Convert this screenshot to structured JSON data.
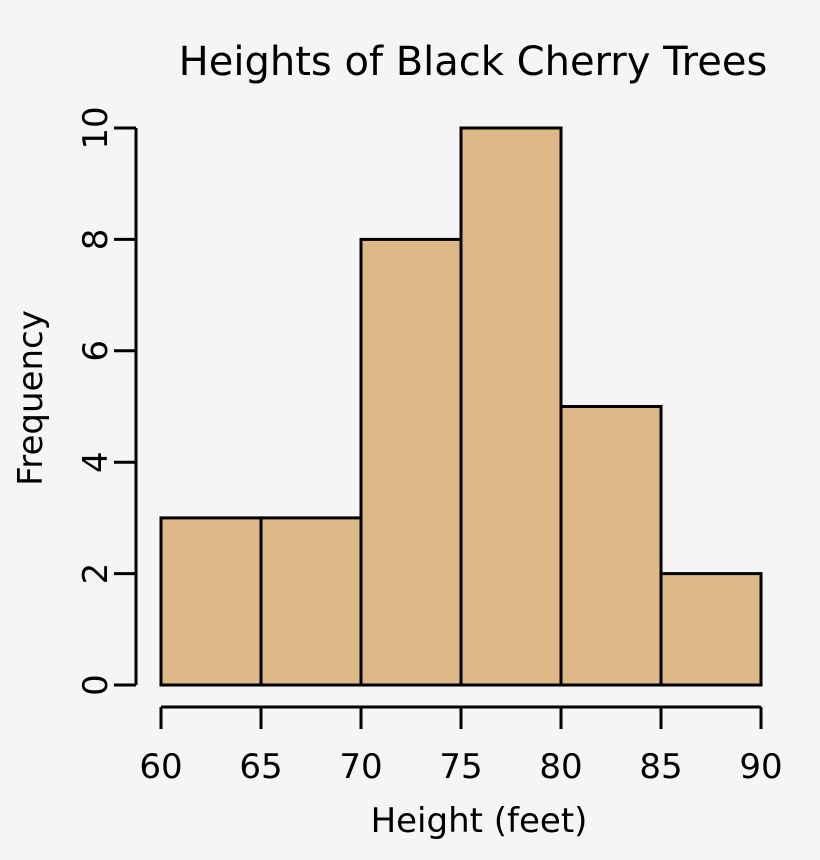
{
  "chart_data": {
    "type": "bar",
    "histogram": true,
    "title": "Heights of Black Cherry Trees",
    "xlabel": "Height (feet)",
    "ylabel": "Frequency",
    "bins": [
      [
        60,
        65
      ],
      [
        65,
        70
      ],
      [
        70,
        75
      ],
      [
        75,
        80
      ],
      [
        80,
        85
      ],
      [
        85,
        90
      ]
    ],
    "values": [
      3,
      3,
      8,
      10,
      5,
      2
    ],
    "xticks": [
      "60",
      "65",
      "70",
      "75",
      "80",
      "85",
      "90"
    ],
    "yticks": [
      "0",
      "2",
      "4",
      "6",
      "8",
      "10"
    ],
    "xlim": [
      60,
      90
    ],
    "ylim": [
      0,
      10
    ],
    "grid": false,
    "colors": {
      "bar_fill": "#deb887",
      "bar_stroke": "#000000",
      "background": "#f5f5f5"
    }
  }
}
